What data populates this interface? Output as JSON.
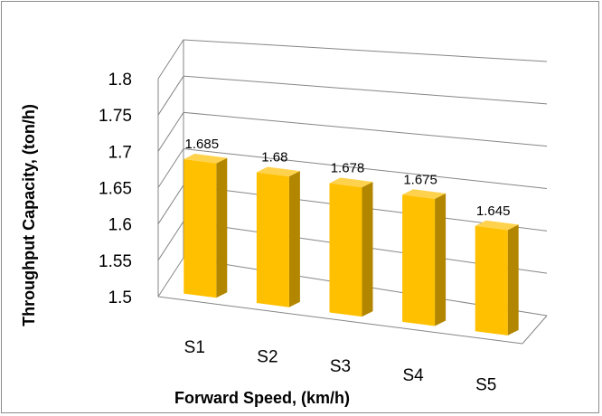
{
  "chart_data": {
    "type": "bar",
    "style": "3d-column",
    "categories": [
      "S1",
      "S2",
      "S3",
      "S4",
      "S5"
    ],
    "values": [
      1.685,
      1.68,
      1.678,
      1.675,
      1.645
    ],
    "data_labels": [
      "1.685",
      "1.68",
      "1.678",
      "1.675",
      "1.645"
    ],
    "xlabel": "Forward Speed, (km/h)",
    "ylabel": "Throughput Capacity, (ton/h)",
    "ylim": [
      1.5,
      1.8
    ],
    "y_ticks": [
      "1.5",
      "1.55",
      "1.6",
      "1.65",
      "1.7",
      "1.75",
      "1.8"
    ],
    "grid": true,
    "legend": "none",
    "colors": {
      "bar_front": "#ffc000",
      "bar_side": "#b38600",
      "bar_top": "#ffd24d",
      "gridline": "#868686"
    }
  }
}
